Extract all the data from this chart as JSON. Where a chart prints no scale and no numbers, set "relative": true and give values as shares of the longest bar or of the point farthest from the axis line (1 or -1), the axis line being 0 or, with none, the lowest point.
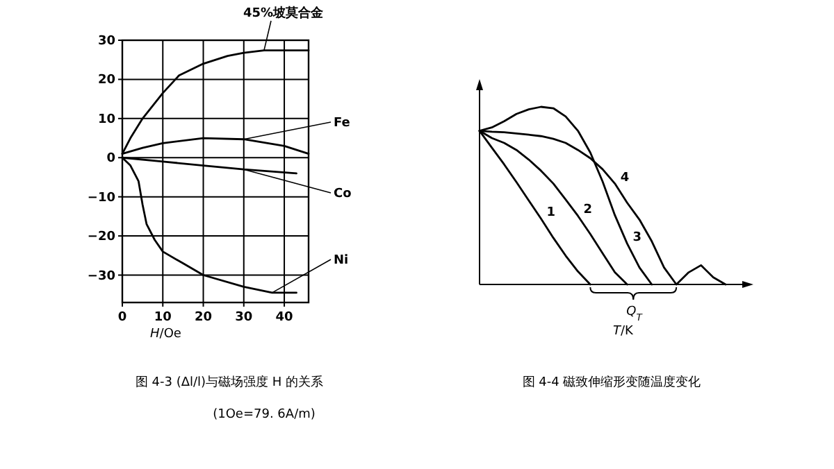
{
  "chart_data": [
    {
      "type": "line",
      "title": "图 4-3 (Δl/l)与磁场强度 H 的关系",
      "subtitle": "(1Oe=79. 6A/m)",
      "xlabel": "*H*/Oe",
      "xlim": [
        0,
        46
      ],
      "ylim": [
        -37,
        30
      ],
      "xticks": [
        0,
        10,
        20,
        30,
        40
      ],
      "yticks": [
        -30,
        -20,
        -10,
        0,
        10,
        20,
        30
      ],
      "grid": true,
      "marker": "none",
      "line_style": "solid",
      "series": [
        {
          "name": "45%坡莫合金",
          "color": "#000000",
          "x": [
            0,
            2,
            5,
            10,
            14,
            20,
            26,
            30,
            35,
            46
          ],
          "values": [
            1,
            5,
            10,
            16.5,
            21,
            24,
            26,
            26.8,
            27.4,
            27.4
          ]
        },
        {
          "name": "Fe",
          "color": "#000000",
          "x": [
            0,
            5,
            10,
            20,
            30,
            40,
            46
          ],
          "values": [
            1,
            2.5,
            3.7,
            5,
            4.7,
            3,
            1
          ]
        },
        {
          "name": "Co",
          "color": "#000000",
          "x": [
            0,
            10,
            20,
            30,
            43
          ],
          "values": [
            0,
            -1,
            -2,
            -3,
            -4
          ]
        },
        {
          "name": "Ni",
          "color": "#000000",
          "x": [
            0,
            2,
            4,
            5,
            6,
            8,
            10,
            15,
            20,
            30,
            37,
            43
          ],
          "values": [
            0,
            -2,
            -6,
            -12,
            -17,
            -21,
            -24,
            -27,
            -30,
            -33,
            -34.5,
            -34.5
          ]
        }
      ]
    },
    {
      "type": "line",
      "title": "图 4-4 磁致伸缩形变随温度变化",
      "xlabel": "*T*/K",
      "relative": true,
      "annotations": [
        "Q$_{T}$"
      ],
      "marker": "none",
      "line_style": "solid",
      "categories": [
        null,
        null,
        null,
        null,
        null,
        null,
        null,
        null,
        null,
        null,
        null,
        null,
        null,
        null,
        null,
        null,
        null,
        null,
        null,
        null,
        null
      ],
      "series": [
        {
          "name": "1",
          "color": "#000000",
          "values": [
            0.865,
            0.77,
            0.676,
            0.576,
            0.473,
            0.37,
            0.262,
            0.162,
            0.073,
            0,
            null,
            null,
            null,
            null,
            null,
            null,
            null,
            null,
            null,
            null,
            null
          ]
        },
        {
          "name": "2",
          "color": "#000000",
          "values": [
            0.865,
            0.824,
            0.797,
            0.757,
            0.703,
            0.64,
            0.568,
            0.478,
            0.386,
            0.284,
            0.176,
            0.068,
            0,
            null,
            null,
            null,
            null,
            null,
            null,
            null,
            null
          ]
        },
        {
          "name": "3",
          "color": "#000000",
          "values": [
            0.865,
            0.884,
            0.919,
            0.96,
            0.986,
            1,
            0.992,
            0.946,
            0.865,
            0.743,
            0.58,
            0.39,
            0.23,
            0.095,
            0,
            null,
            null,
            null,
            null,
            null,
            null
          ]
        },
        {
          "name": "4",
          "color": "#000000",
          "values": [
            0.865,
            0.86,
            0.857,
            0.85,
            0.843,
            0.835,
            0.82,
            0.797,
            0.757,
            0.711,
            0.649,
            0.568,
            0.46,
            0.365,
            0.243,
            0.095,
            0,
            0.068,
            0.108,
            0.04,
            0
          ]
        }
      ]
    }
  ]
}
